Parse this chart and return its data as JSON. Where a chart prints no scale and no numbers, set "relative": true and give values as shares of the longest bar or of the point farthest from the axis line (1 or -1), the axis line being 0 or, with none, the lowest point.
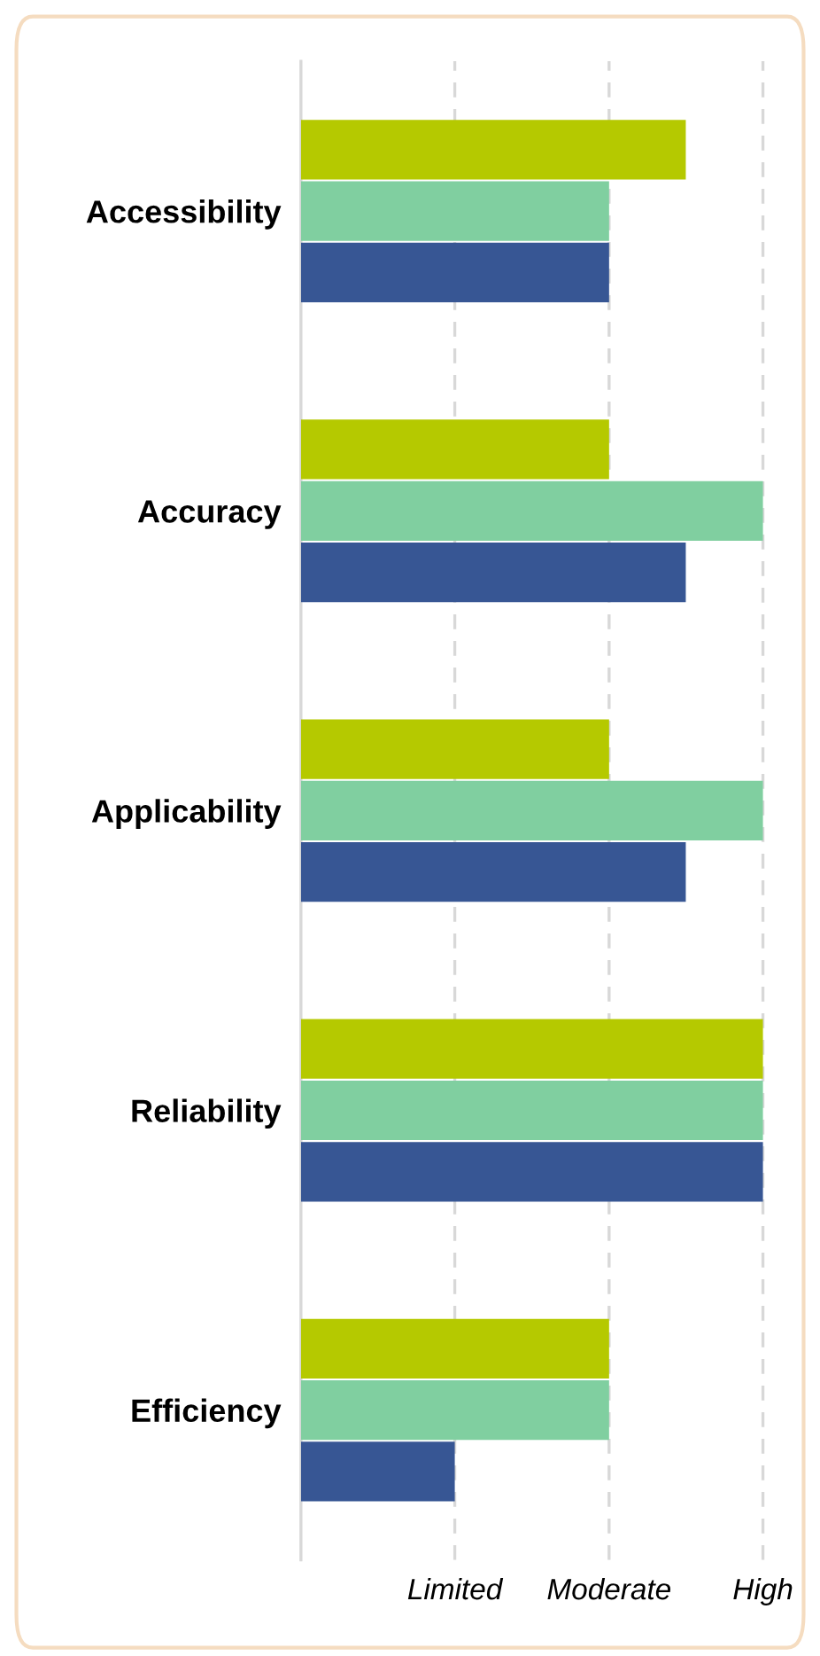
{
  "chart_data": {
    "type": "bar",
    "orientation": "horizontal",
    "relative": true,
    "categories": [
      "Accessibility",
      "Accuracy",
      "Applicability",
      "Reliability",
      "Efficiency"
    ],
    "series": [
      {
        "color": "#b5c900",
        "values": [
          0.833,
          0.667,
          0.667,
          1,
          0.667
        ]
      },
      {
        "color": "#80cfa0",
        "values": [
          0.667,
          1,
          1,
          1,
          0.667
        ]
      },
      {
        "color": "#375694",
        "values": [
          0.667,
          0.833,
          0.833,
          1,
          0.333
        ]
      }
    ],
    "ref_lines": [
      {
        "axis": "x",
        "value": 0.333,
        "label": "Limited",
        "color": "#d8d8d8",
        "line_style": "dashed"
      },
      {
        "axis": "x",
        "value": 0.667,
        "label": "Moderate",
        "color": "#d8d8d8",
        "line_style": "dashed"
      },
      {
        "axis": "x",
        "value": 1,
        "label": "High",
        "color": "#d8d8d8",
        "line_style": "dashed"
      }
    ],
    "legend": false
  }
}
